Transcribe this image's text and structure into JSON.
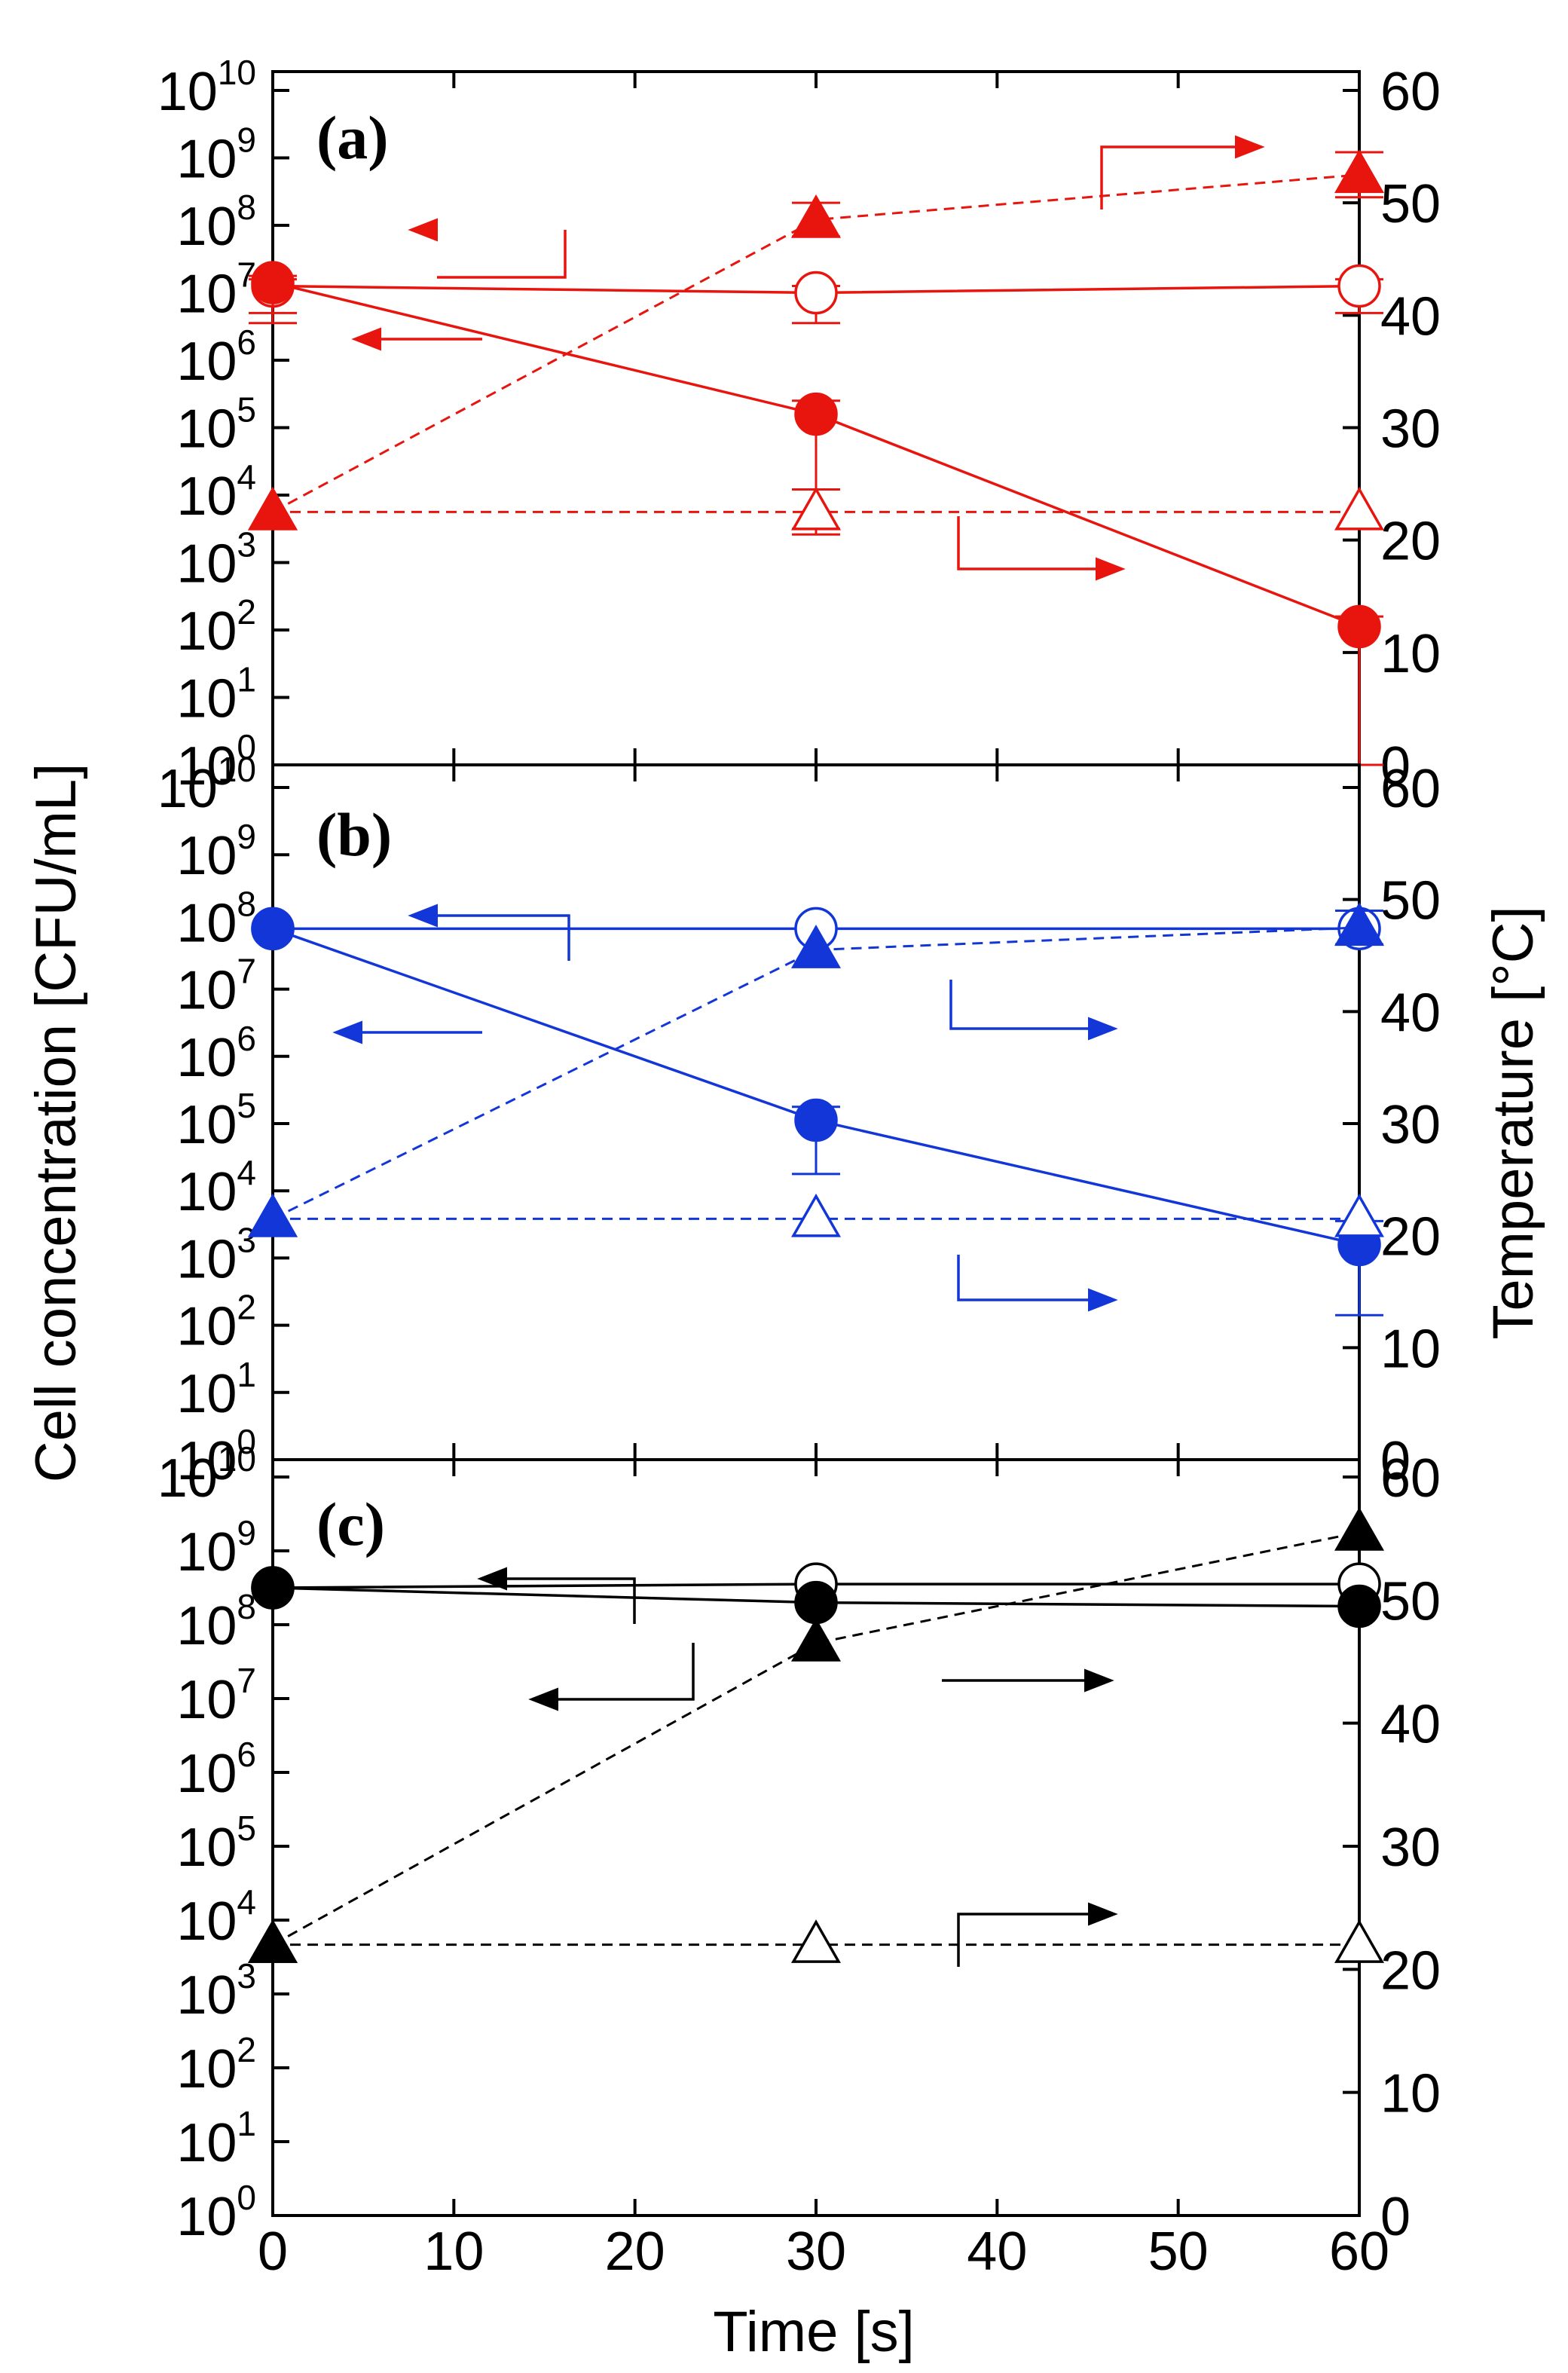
{
  "chart_data": {
    "type": "line",
    "xlabel": "Time [s]",
    "ylabel_left": "Cell concentration [CFU/mL]",
    "ylabel_right": "Temperature [°C]",
    "x_ticks": [
      "0",
      "10",
      "20",
      "30",
      "40",
      "50",
      "60"
    ],
    "xlim": [
      0,
      60
    ],
    "ylim_left_log10": [
      0,
      10
    ],
    "ylim_right": [
      0,
      60
    ],
    "left_ticks": [
      {
        "base": "10",
        "exp": "0"
      },
      {
        "base": "10",
        "exp": "1"
      },
      {
        "base": "10",
        "exp": "2"
      },
      {
        "base": "10",
        "exp": "3"
      },
      {
        "base": "10",
        "exp": "4"
      },
      {
        "base": "10",
        "exp": "5"
      },
      {
        "base": "10",
        "exp": "6"
      },
      {
        "base": "10",
        "exp": "7"
      },
      {
        "base": "10",
        "exp": "8"
      },
      {
        "base": "10",
        "exp": "9"
      },
      {
        "base": "10",
        "exp": "10"
      }
    ],
    "right_ticks": [
      "0",
      "10",
      "20",
      "30",
      "40",
      "50",
      "60"
    ],
    "panels": [
      {
        "label": "(a)",
        "color": "#e8150f",
        "series": [
          {
            "name": "cell concentration, control (open circles)",
            "marker": "circle-open",
            "axis": "left",
            "line": "solid",
            "x": [
              0,
              30,
              60
            ],
            "log10_cfu": [
              7.1,
              7.0,
              7.1
            ],
            "err_low": [
              0.55,
              0.45,
              0.4
            ],
            "err_high": [
              0.1,
              0.1,
              0.1
            ]
          },
          {
            "name": "cell concentration, treated (filled circles)",
            "marker": "circle-filled",
            "axis": "left",
            "line": "solid",
            "x": [
              0,
              30,
              60
            ],
            "log10_cfu": [
              7.15,
              5.2,
              2.05
            ],
            "err_low": [
              0.45,
              1.7,
              2.05
            ],
            "err_high": [
              0.1,
              0.2,
              0.15
            ]
          },
          {
            "name": "temperature, control (open triangles)",
            "marker": "triangle-open",
            "axis": "right",
            "line": "dashed",
            "x": [
              0,
              30,
              60
            ],
            "temp_c": [
              22.5,
              22.5,
              22.5
            ],
            "err": [
              0,
              2,
              0
            ]
          },
          {
            "name": "temperature, treated (filled triangles)",
            "marker": "triangle-filled",
            "axis": "right",
            "line": "dashed",
            "x": [
              0,
              30,
              60
            ],
            "temp_c": [
              22.5,
              48.5,
              52.5
            ],
            "err": [
              0,
              1.5,
              2
            ]
          }
        ]
      },
      {
        "label": "(b)",
        "color": "#1236d8",
        "series": [
          {
            "name": "cell concentration, control (open circles)",
            "marker": "circle-open",
            "axis": "left",
            "line": "solid",
            "x": [
              0,
              30,
              60
            ],
            "log10_cfu": [
              7.9,
              7.9,
              7.9
            ],
            "err_low": [
              0,
              0,
              0
            ],
            "err_high": [
              0,
              0,
              0
            ]
          },
          {
            "name": "cell concentration, treated (filled circles)",
            "marker": "circle-filled",
            "axis": "left",
            "line": "solid",
            "x": [
              0,
              30,
              60
            ],
            "log10_cfu": [
              7.9,
              5.05,
              3.2
            ],
            "err_low": [
              0,
              0.8,
              1.05
            ],
            "err_high": [
              0,
              0.2,
              0.35
            ]
          },
          {
            "name": "temperature, control (open triangles)",
            "marker": "triangle-open",
            "axis": "right",
            "line": "dashed",
            "x": [
              0,
              30,
              60
            ],
            "temp_c": [
              21.5,
              21.5,
              21.5
            ],
            "err": [
              0,
              0,
              0
            ]
          },
          {
            "name": "temperature, treated (filled triangles)",
            "marker": "triangle-filled",
            "axis": "right",
            "line": "dashed",
            "x": [
              0,
              30,
              60
            ],
            "temp_c": [
              21.5,
              45.5,
              47.5
            ],
            "err": [
              0,
              0,
              1.5
            ]
          }
        ]
      },
      {
        "label": "(c)",
        "color": "#000000",
        "series": [
          {
            "name": "cell concentration, control (open circles)",
            "marker": "circle-open",
            "axis": "left",
            "line": "solid",
            "x": [
              0,
              30,
              60
            ],
            "log10_cfu": [
              8.5,
              8.55,
              8.55
            ],
            "err_low": [
              0,
              0,
              0
            ],
            "err_high": [
              0,
              0,
              0
            ]
          },
          {
            "name": "cell concentration, treated (filled circles)",
            "marker": "circle-filled",
            "axis": "left",
            "line": "solid",
            "x": [
              0,
              30,
              60
            ],
            "log10_cfu": [
              8.5,
              8.3,
              8.25
            ],
            "err_low": [
              0,
              0,
              0
            ],
            "err_high": [
              0,
              0,
              0
            ]
          },
          {
            "name": "temperature, control (open triangles)",
            "marker": "triangle-open",
            "axis": "right",
            "line": "dashed",
            "x": [
              0,
              30,
              60
            ],
            "temp_c": [
              22,
              22,
              22
            ],
            "err": [
              0,
              0,
              0
            ]
          },
          {
            "name": "temperature, treated (filled triangles)",
            "marker": "triangle-filled",
            "axis": "right",
            "line": "dashed",
            "x": [
              0,
              30,
              60
            ],
            "temp_c": [
              22,
              46.5,
              55.5
            ],
            "err": [
              0,
              0,
              0
            ]
          }
        ]
      }
    ]
  }
}
